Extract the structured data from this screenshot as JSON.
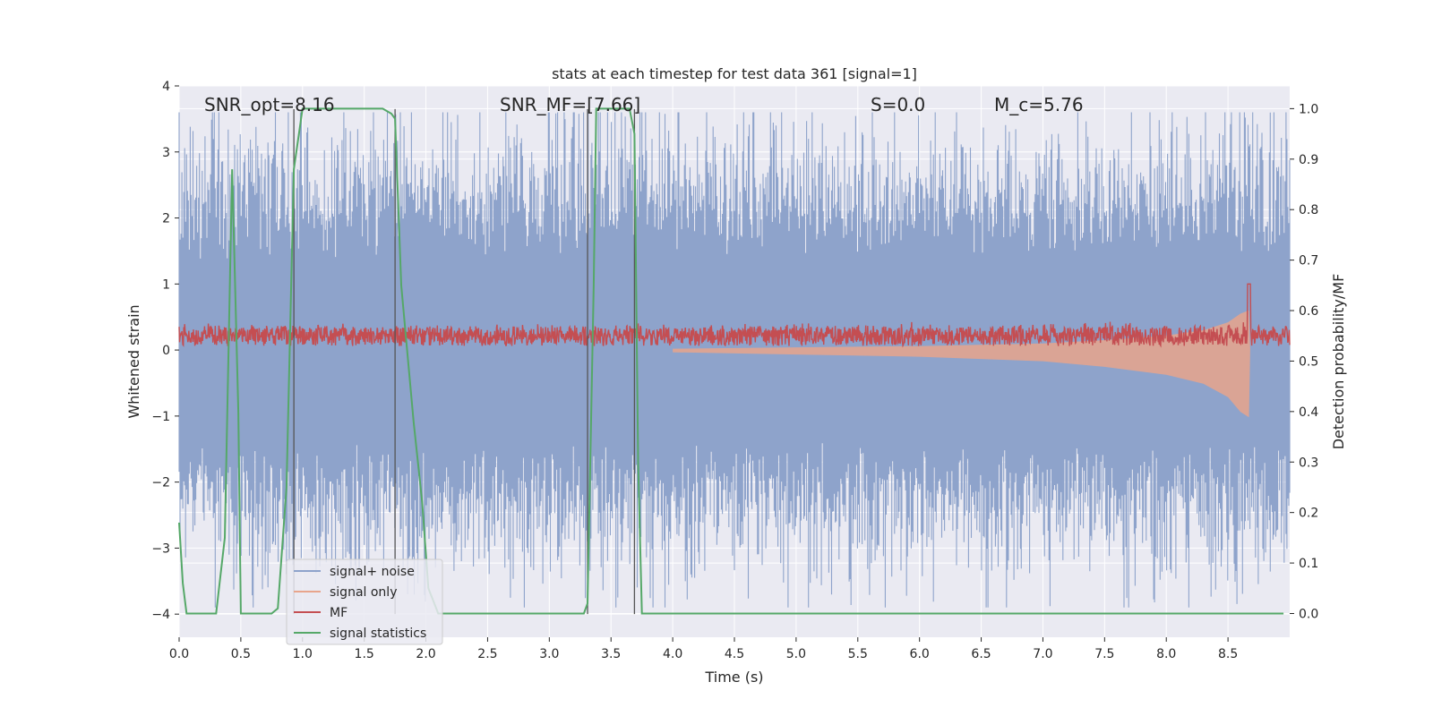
{
  "chart_data": {
    "type": "line",
    "title": "stats at each timestep for test data 361 [signal=1]",
    "xlabel": "Time (s)",
    "ylabel": "Whitened strain",
    "y2label": "Detection probability/MF",
    "xlim": [
      0,
      9.0
    ],
    "ylim": [
      -4.35,
      4.0
    ],
    "y2lim": [
      -0.047,
      1.045
    ],
    "xticks": [
      "0.0",
      "0.5",
      "1.0",
      "1.5",
      "2.0",
      "2.5",
      "3.0",
      "3.5",
      "4.0",
      "4.5",
      "5.0",
      "5.5",
      "6.0",
      "6.5",
      "7.0",
      "7.5",
      "8.0",
      "8.5"
    ],
    "yticks": [
      "4",
      "3",
      "2",
      "1",
      "0",
      "−1",
      "−2",
      "−3",
      "−4"
    ],
    "y2ticks": [
      "1.0",
      "0.9",
      "0.8",
      "0.7",
      "0.6",
      "0.5",
      "0.4",
      "0.3",
      "0.2",
      "0.1",
      "0.0"
    ],
    "grid": true,
    "legend_position": "lower-left",
    "annotations": [
      {
        "text": "SNR_opt=8.16",
        "x": 0.2
      },
      {
        "text": "SNR_MF=[7.66]",
        "x": 2.6
      },
      {
        "text": "S=0.0",
        "x": 5.6
      },
      {
        "text": "M_c=5.76",
        "x": 6.6
      }
    ],
    "vlines": [
      0.93,
      1.75,
      3.31,
      3.69
    ],
    "series": [
      {
        "name": "signal+ noise",
        "color": "#8ea3cb",
        "axis": "left",
        "description": "whitened strain noise, amplitude roughly ±3.6 peaks",
        "amplitude_typical": 1.6,
        "amplitude_peak": 3.6
      },
      {
        "name": "signal only",
        "color": "#e8a58c",
        "axis": "left",
        "description": "chirp envelope growing until merger",
        "envelope": {
          "x": [
            4.0,
            5.0,
            6.0,
            7.0,
            7.5,
            8.0,
            8.3,
            8.5,
            8.6,
            8.67,
            8.68
          ],
          "amp": [
            0.02,
            0.04,
            0.06,
            0.1,
            0.15,
            0.22,
            0.3,
            0.42,
            0.55,
            0.6,
            0.0
          ]
        }
      },
      {
        "name": "MF",
        "color": "#c44e52",
        "axis": "left",
        "description": "matched filter output, ~0.2 baseline",
        "baseline": 0.2,
        "peak": {
          "x": 8.67,
          "y": 1.0
        }
      },
      {
        "name": "signal statistics",
        "color": "#55a868",
        "axis": "right",
        "x": [
          0.0,
          0.03,
          0.06,
          0.1,
          0.3,
          0.37,
          0.43,
          0.48,
          0.5,
          0.55,
          0.75,
          0.8,
          0.87,
          0.93,
          1.0,
          1.1,
          1.3,
          1.5,
          1.65,
          1.72,
          1.75,
          1.8,
          1.9,
          1.97,
          2.02,
          2.1,
          2.2,
          2.3,
          3.28,
          3.31,
          3.36,
          3.38,
          3.42,
          3.5,
          3.6,
          3.65,
          3.69,
          3.72,
          3.75,
          3.8,
          4.0,
          5.0,
          6.0,
          7.0,
          7.1,
          7.2,
          8.0,
          8.95
        ],
        "y": [
          0.18,
          0.06,
          0.0,
          0.0,
          0.0,
          0.15,
          0.88,
          0.4,
          0.0,
          0.0,
          0.0,
          0.01,
          0.25,
          0.88,
          1.0,
          1.0,
          1.0,
          1.0,
          1.0,
          0.99,
          0.98,
          0.65,
          0.38,
          0.22,
          0.05,
          0.0,
          0.0,
          0.0,
          0.0,
          0.02,
          0.65,
          1.0,
          1.0,
          1.0,
          1.0,
          1.0,
          0.95,
          0.3,
          0.0,
          0.0,
          0.0,
          0.0,
          0.0,
          0.0,
          0.0,
          0.0,
          0.0,
          0.0
        ]
      }
    ]
  },
  "colors": {
    "plot_background": "#eaeaf2",
    "grid": "#ffffff",
    "vline": "#555555"
  }
}
